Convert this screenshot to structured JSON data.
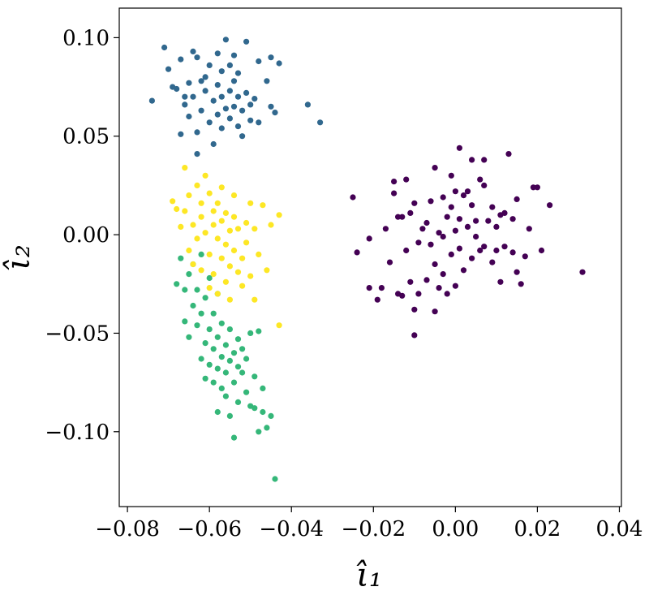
{
  "chart_data": {
    "type": "scatter",
    "xlabel": "ι̂₁",
    "ylabel": "ι̂₂",
    "xlim": [
      -0.082,
      0.0405
    ],
    "ylim": [
      -0.138,
      0.115
    ],
    "xticks": [
      -0.08,
      -0.06,
      -0.04,
      -0.02,
      0.0,
      0.02,
      0.04
    ],
    "xtick_labels": [
      "−0.08",
      "−0.06",
      "−0.04",
      "−0.02",
      "0.00",
      "0.02",
      "0.04"
    ],
    "yticks": [
      -0.1,
      -0.05,
      0.0,
      0.05,
      0.1
    ],
    "ytick_labels": [
      "−0.10",
      "−0.05",
      "0.00",
      "0.05",
      "0.10"
    ],
    "grid": false,
    "legend": "none",
    "series": [
      {
        "color": "#440154",
        "points": [
          [
            -0.025,
            0.019
          ],
          [
            -0.024,
            -0.009
          ],
          [
            -0.021,
            -0.002
          ],
          [
            -0.021,
            -0.027
          ],
          [
            -0.019,
            -0.033
          ],
          [
            -0.018,
            -0.027
          ],
          [
            -0.017,
            0.003
          ],
          [
            -0.016,
            -0.014
          ],
          [
            -0.015,
            0.027
          ],
          [
            -0.015,
            0.021
          ],
          [
            -0.014,
            0.009
          ],
          [
            -0.014,
            -0.03
          ],
          [
            -0.013,
            -0.031
          ],
          [
            -0.013,
            0.009
          ],
          [
            -0.012,
            0.028
          ],
          [
            -0.012,
            -0.008
          ],
          [
            -0.011,
            0.011
          ],
          [
            -0.011,
            -0.024
          ],
          [
            -0.01,
            0.016
          ],
          [
            -0.01,
            -0.038
          ],
          [
            -0.01,
            -0.051
          ],
          [
            -0.009,
            -0.004
          ],
          [
            -0.009,
            -0.03
          ],
          [
            -0.008,
            0.003
          ],
          [
            -0.007,
            0.006
          ],
          [
            -0.007,
            -0.023
          ],
          [
            -0.006,
            0.017
          ],
          [
            -0.006,
            -0.005
          ],
          [
            -0.005,
            0.034
          ],
          [
            -0.005,
            -0.015
          ],
          [
            -0.005,
            -0.039
          ],
          [
            -0.004,
            0.001
          ],
          [
            -0.004,
            -0.027
          ],
          [
            -0.003,
            0.019
          ],
          [
            -0.003,
            -0.001
          ],
          [
            -0.003,
            -0.02
          ],
          [
            -0.002,
            0.009
          ],
          [
            -0.002,
            -0.03
          ],
          [
            -0.001,
            0.03
          ],
          [
            -0.001,
            0.014
          ],
          [
            -0.001,
            -0.01
          ],
          [
            0.0,
            0.022
          ],
          [
            0.0,
            0.002
          ],
          [
            0.0,
            -0.026
          ],
          [
            0.001,
            0.044
          ],
          [
            0.001,
            0.008
          ],
          [
            0.001,
            -0.007
          ],
          [
            0.002,
            0.02
          ],
          [
            0.002,
            -0.018
          ],
          [
            0.003,
            0.022
          ],
          [
            0.003,
            0.004
          ],
          [
            0.004,
            0.038
          ],
          [
            0.004,
            -0.012
          ],
          [
            0.004,
            0.015
          ],
          [
            0.005,
            0.007
          ],
          [
            0.005,
            -0.001
          ],
          [
            0.006,
            0.028
          ],
          [
            0.006,
            -0.008
          ],
          [
            0.007,
            0.025
          ],
          [
            0.007,
            0.038
          ],
          [
            0.007,
            -0.006
          ],
          [
            0.008,
            0.007
          ],
          [
            0.009,
            0.014
          ],
          [
            0.009,
            -0.014
          ],
          [
            0.01,
            0.004
          ],
          [
            0.01,
            -0.008
          ],
          [
            0.011,
            0.01
          ],
          [
            0.011,
            -0.024
          ],
          [
            0.012,
            0.011
          ],
          [
            0.012,
            -0.006
          ],
          [
            0.013,
            0.041
          ],
          [
            0.014,
            0.008
          ],
          [
            0.014,
            -0.009
          ],
          [
            0.015,
            0.018
          ],
          [
            0.015,
            -0.019
          ],
          [
            0.016,
            -0.025
          ],
          [
            0.017,
            -0.011
          ],
          [
            0.018,
            0.003
          ],
          [
            0.019,
            0.024
          ],
          [
            0.02,
            0.024
          ],
          [
            0.021,
            -0.008
          ],
          [
            0.023,
            0.015
          ],
          [
            0.031,
            -0.019
          ]
        ]
      },
      {
        "color": "#31688e",
        "points": [
          [
            -0.074,
            0.068
          ],
          [
            -0.071,
            0.095
          ],
          [
            -0.07,
            0.084
          ],
          [
            -0.069,
            0.075
          ],
          [
            -0.068,
            0.074
          ],
          [
            -0.067,
            0.089
          ],
          [
            -0.067,
            0.051
          ],
          [
            -0.066,
            0.07
          ],
          [
            -0.066,
            0.066
          ],
          [
            -0.065,
            0.077
          ],
          [
            -0.065,
            0.06
          ],
          [
            -0.064,
            0.093
          ],
          [
            -0.064,
            0.07
          ],
          [
            -0.063,
            0.09
          ],
          [
            -0.063,
            0.052
          ],
          [
            -0.063,
            0.041
          ],
          [
            -0.062,
            0.078
          ],
          [
            -0.062,
            0.063
          ],
          [
            -0.061,
            0.073
          ],
          [
            -0.061,
            0.08
          ],
          [
            -0.06,
            0.086
          ],
          [
            -0.06,
            0.057
          ],
          [
            -0.059,
            0.068
          ],
          [
            -0.059,
            0.046
          ],
          [
            -0.058,
            0.076
          ],
          [
            -0.058,
            0.061
          ],
          [
            -0.058,
            0.092
          ],
          [
            -0.057,
            0.083
          ],
          [
            -0.057,
            0.054
          ],
          [
            -0.057,
            0.07
          ],
          [
            -0.056,
            0.064
          ],
          [
            -0.056,
            0.099
          ],
          [
            -0.055,
            0.073
          ],
          [
            -0.055,
            0.059
          ],
          [
            -0.055,
            0.086
          ],
          [
            -0.054,
            0.065
          ],
          [
            -0.054,
            0.078
          ],
          [
            -0.054,
            0.091
          ],
          [
            -0.053,
            0.055
          ],
          [
            -0.053,
            0.07
          ],
          [
            -0.053,
            0.082
          ],
          [
            -0.052,
            0.063
          ],
          [
            -0.052,
            0.05
          ],
          [
            -0.051,
            0.072
          ],
          [
            -0.051,
            0.098
          ],
          [
            -0.05,
            0.066
          ],
          [
            -0.05,
            0.058
          ],
          [
            -0.049,
            0.069
          ],
          [
            -0.048,
            0.088
          ],
          [
            -0.048,
            0.057
          ],
          [
            -0.046,
            0.078
          ],
          [
            -0.045,
            0.09
          ],
          [
            -0.045,
            0.065
          ],
          [
            -0.044,
            0.062
          ],
          [
            -0.043,
            0.087
          ],
          [
            -0.036,
            0.066
          ],
          [
            -0.033,
            0.057
          ]
        ]
      },
      {
        "color": "#35b779",
        "points": [
          [
            -0.068,
            -0.025
          ],
          [
            -0.067,
            -0.012
          ],
          [
            -0.066,
            -0.028
          ],
          [
            -0.066,
            -0.044
          ],
          [
            -0.065,
            -0.02
          ],
          [
            -0.065,
            -0.052
          ],
          [
            -0.064,
            -0.036
          ],
          [
            -0.064,
            -0.015
          ],
          [
            -0.063,
            -0.046
          ],
          [
            -0.063,
            -0.028
          ],
          [
            -0.062,
            -0.063
          ],
          [
            -0.062,
            -0.04
          ],
          [
            -0.062,
            -0.01
          ],
          [
            -0.061,
            -0.055
          ],
          [
            -0.061,
            -0.032
          ],
          [
            -0.061,
            -0.073
          ],
          [
            -0.06,
            -0.066
          ],
          [
            -0.06,
            -0.048
          ],
          [
            -0.06,
            -0.022
          ],
          [
            -0.059,
            -0.075
          ],
          [
            -0.059,
            -0.058
          ],
          [
            -0.059,
            -0.04
          ],
          [
            -0.058,
            -0.068
          ],
          [
            -0.058,
            -0.052
          ],
          [
            -0.058,
            -0.03
          ],
          [
            -0.058,
            -0.09
          ],
          [
            -0.057,
            -0.078
          ],
          [
            -0.057,
            -0.062
          ],
          [
            -0.057,
            -0.045
          ],
          [
            -0.056,
            -0.07
          ],
          [
            -0.056,
            -0.056
          ],
          [
            -0.056,
            -0.082
          ],
          [
            -0.055,
            -0.064
          ],
          [
            -0.055,
            -0.048
          ],
          [
            -0.055,
            -0.092
          ],
          [
            -0.054,
            -0.103
          ],
          [
            -0.054,
            -0.06
          ],
          [
            -0.054,
            -0.075
          ],
          [
            -0.053,
            -0.053
          ],
          [
            -0.053,
            -0.067
          ],
          [
            -0.053,
            -0.085
          ],
          [
            -0.052,
            -0.07
          ],
          [
            -0.052,
            -0.058
          ],
          [
            -0.051,
            -0.08
          ],
          [
            -0.051,
            -0.063
          ],
          [
            -0.05,
            -0.087
          ],
          [
            -0.05,
            -0.05
          ],
          [
            -0.049,
            -0.072
          ],
          [
            -0.049,
            -0.088
          ],
          [
            -0.048,
            -0.1
          ],
          [
            -0.048,
            -0.049
          ],
          [
            -0.047,
            -0.078
          ],
          [
            -0.047,
            -0.09
          ],
          [
            -0.046,
            -0.098
          ],
          [
            -0.045,
            -0.092
          ],
          [
            -0.044,
            -0.124
          ]
        ]
      },
      {
        "color": "#fde725",
        "points": [
          [
            -0.069,
            0.017
          ],
          [
            -0.068,
            0.013
          ],
          [
            -0.067,
            0.004
          ],
          [
            -0.066,
            0.034
          ],
          [
            -0.066,
            0.012
          ],
          [
            -0.065,
            -0.008
          ],
          [
            -0.065,
            0.02
          ],
          [
            -0.064,
            0.005
          ],
          [
            -0.064,
            -0.015
          ],
          [
            -0.063,
            0.025
          ],
          [
            -0.063,
            -0.002
          ],
          [
            -0.062,
            0.016
          ],
          [
            -0.062,
            0.009
          ],
          [
            -0.062,
            -0.018
          ],
          [
            -0.061,
            0.03
          ],
          [
            -0.061,
            0.001
          ],
          [
            -0.06,
            0.021
          ],
          [
            -0.06,
            -0.01
          ],
          [
            -0.06,
            -0.027
          ],
          [
            -0.059,
            0.012
          ],
          [
            -0.059,
            0.005
          ],
          [
            -0.059,
            -0.02
          ],
          [
            -0.058,
            -0.002
          ],
          [
            -0.058,
            0.016
          ],
          [
            -0.058,
            -0.03
          ],
          [
            -0.057,
            0.007
          ],
          [
            -0.057,
            -0.012
          ],
          [
            -0.057,
            0.024
          ],
          [
            -0.056,
            -0.005
          ],
          [
            -0.056,
            -0.024
          ],
          [
            -0.056,
            0.011
          ],
          [
            -0.055,
            0.002
          ],
          [
            -0.055,
            -0.016
          ],
          [
            -0.055,
            -0.033
          ],
          [
            -0.054,
            0.009
          ],
          [
            -0.054,
            -0.008
          ],
          [
            -0.054,
            0.02
          ],
          [
            -0.053,
            -0.019
          ],
          [
            -0.053,
            0.003
          ],
          [
            -0.052,
            -0.012
          ],
          [
            -0.052,
            -0.026
          ],
          [
            -0.051,
            0.006
          ],
          [
            -0.051,
            -0.004
          ],
          [
            -0.05,
            0.016
          ],
          [
            -0.05,
            -0.021
          ],
          [
            -0.049,
            0.003
          ],
          [
            -0.049,
            -0.033
          ],
          [
            -0.048,
            -0.01
          ],
          [
            -0.047,
            0.015
          ],
          [
            -0.046,
            -0.018
          ],
          [
            -0.045,
            0.005
          ],
          [
            -0.043,
            0.01
          ],
          [
            -0.043,
            -0.046
          ]
        ]
      }
    ]
  }
}
